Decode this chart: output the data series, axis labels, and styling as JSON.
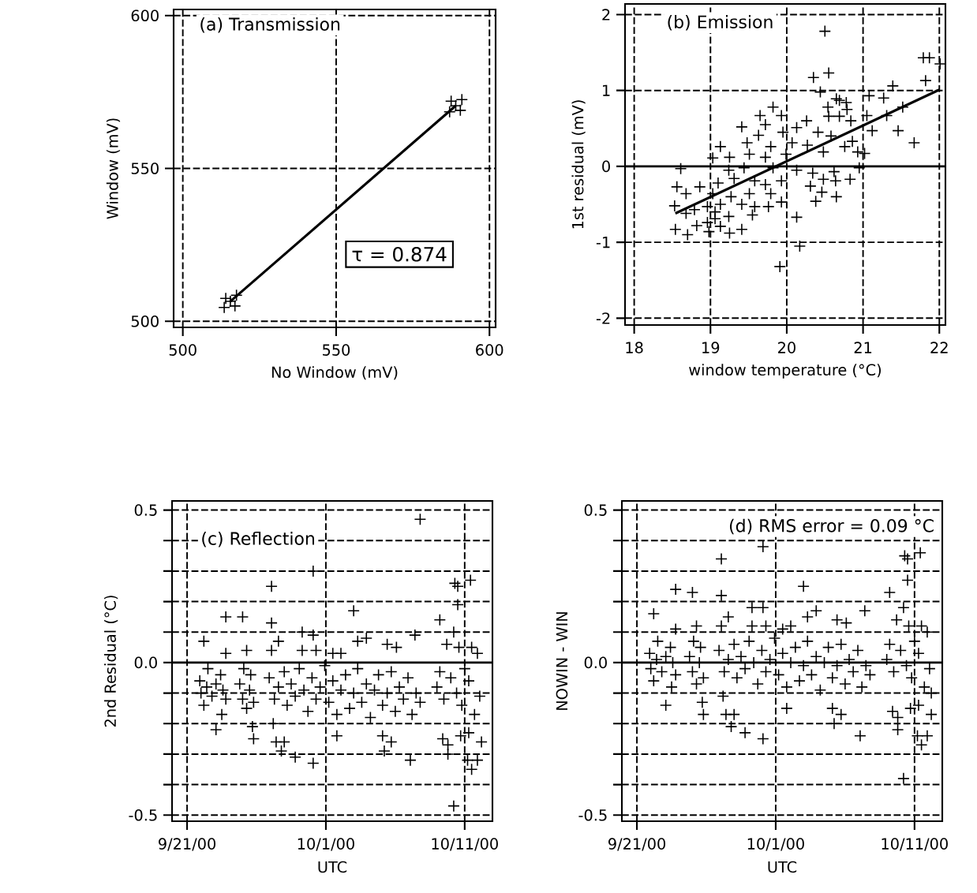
{
  "chart_data": [
    {
      "type": "scatter",
      "title": "(a) Transmission",
      "xlabel": "No Window (mV)",
      "ylabel": "Window (mV)",
      "annotations": [
        "τ = 0.874"
      ],
      "xlim": [
        497,
        602
      ],
      "ylim": [
        498,
        602
      ],
      "xticks": [
        500,
        550,
        600
      ],
      "yticks": [
        500,
        550,
        600
      ],
      "grid": true,
      "series": [
        {
          "color": "#000000",
          "marker": "cross",
          "x": [
            513.5,
            515.5,
            517.5,
            514,
            517,
            587,
            589,
            591,
            587.5,
            590.5
          ],
          "values": [
            504.5,
            506.5,
            508.5,
            507.5,
            505,
            568.5,
            570.5,
            572.5,
            572,
            569
          ]
        },
        {
          "type": "line",
          "marker": "none",
          "color": "#000000",
          "x": [
            515.4,
            589
          ],
          "values": [
            506.4,
            570.5
          ]
        }
      ]
    },
    {
      "type": "scatter",
      "title": "(b) Emission",
      "xlabel": "window temperature (°C)",
      "ylabel": "1st residual (mV)",
      "xlim": [
        17.88,
        22.08
      ],
      "ylim": [
        -2.09,
        2.14
      ],
      "xticks": [
        18,
        19,
        20,
        21,
        22
      ],
      "yticks": [
        -2,
        -1,
        0,
        1,
        2
      ],
      "grid": true,
      "ref_lines": [
        {
          "axis": "y",
          "value": 0
        }
      ],
      "series": [
        {
          "color": "#000000",
          "marker": "cross",
          "x": [
            20.5,
            21.79,
            21.87,
            22.01,
            20.55,
            20.35,
            21.82,
            21.39,
            20.44,
            21.08,
            21.27,
            20.65,
            20.69,
            20.78,
            20.54,
            19.82,
            21.52,
            20.79,
            19.65,
            19.93,
            21.05,
            21.31,
            20.55,
            20.69,
            20.26,
            20.84,
            19.72,
            19.41,
            20.13,
            21.46,
            21.12,
            21.67,
            19.63,
            19.95,
            20.41,
            19.48,
            20.07,
            20.58,
            20.86,
            19.13,
            19.79,
            20.27,
            20.76,
            19.03,
            19.25,
            19.51,
            19.72,
            19.99,
            20.48,
            20.93,
            21.02,
            20.95,
            18.61,
            19.24,
            19.44,
            19.82,
            20.13,
            20.34,
            20.62,
            20.64,
            20.83,
            20.48,
            18.56,
            18.86,
            19.1,
            19.31,
            19.58,
            19.72,
            19.93,
            20.31,
            18.68,
            19.03,
            19.27,
            19.51,
            19.79,
            20.46,
            20.65,
            20.38,
            18.53,
            18.79,
            18.96,
            19.13,
            19.41,
            19.58,
            19.76,
            19.93,
            18.68,
            19.06,
            19.24,
            19.55,
            20.13,
            18.54,
            18.7,
            18.82,
            18.98,
            19.13,
            19.25,
            19.41,
            18.96,
            19.06,
            20.17,
            19.91
          ],
          "values": [
            1.78,
            1.43,
            1.43,
            1.35,
            1.23,
            1.17,
            1.13,
            1.06,
            0.98,
            0.93,
            0.9,
            0.89,
            0.87,
            0.84,
            0.78,
            0.78,
            0.78,
            0.75,
            0.67,
            0.67,
            0.67,
            0.67,
            0.66,
            0.66,
            0.6,
            0.6,
            0.55,
            0.52,
            0.51,
            0.47,
            0.47,
            0.31,
            0.41,
            0.45,
            0.45,
            0.31,
            0.31,
            0.4,
            0.33,
            0.26,
            0.26,
            0.28,
            0.26,
            0.11,
            0.12,
            0.16,
            0.12,
            0.16,
            0.19,
            0.19,
            0.17,
            -0.02,
            -0.03,
            -0.05,
            -0.02,
            -0.02,
            -0.05,
            -0.09,
            -0.07,
            -0.19,
            -0.17,
            -0.17,
            -0.27,
            -0.27,
            -0.22,
            -0.16,
            -0.19,
            -0.24,
            -0.19,
            -0.26,
            -0.36,
            -0.36,
            -0.4,
            -0.36,
            -0.36,
            -0.34,
            -0.4,
            -0.46,
            -0.52,
            -0.57,
            -0.53,
            -0.5,
            -0.5,
            -0.53,
            -0.53,
            -0.47,
            -0.62,
            -0.6,
            -0.66,
            -0.64,
            -0.67,
            -0.83,
            -0.9,
            -0.78,
            -0.86,
            -0.79,
            -0.88,
            -0.83,
            -0.74,
            -0.69,
            -1.05,
            -1.32
          ]
        },
        {
          "type": "line",
          "marker": "none",
          "color": "#000000",
          "x": [
            18.54,
            22.0
          ],
          "values": [
            -0.62,
            1.01
          ]
        }
      ]
    },
    {
      "type": "scatter",
      "title": "(c) Reflection",
      "xlabel": "UTC",
      "ylabel": "2nd Residual (°C)",
      "xlim": [
        "2000-09-19T22:00",
        "2000-10-13T00:00"
      ],
      "ylim": [
        -0.52,
        0.53
      ],
      "xticks": [
        {
          "value": "2000-09-21",
          "label": "9/21/00"
        },
        {
          "value": "2000-10-01",
          "label": "10/1/00"
        },
        {
          "value": "2000-10-11",
          "label": "10/11/00"
        }
      ],
      "yticks": [
        -0.5,
        {
          "value": -0.4,
          "label": null
        },
        {
          "value": -0.3,
          "label": null
        },
        {
          "value": -0.2,
          "label": null
        },
        {
          "value": -0.1,
          "label": null
        },
        {
          "value": 0.0,
          "label": "0.0"
        },
        {
          "value": 0.1,
          "label": null
        },
        {
          "value": 0.2,
          "label": null
        },
        {
          "value": 0.3,
          "label": null
        },
        {
          "value": 0.4,
          "label": null
        },
        0.5
      ],
      "grid": true,
      "marker": "cross",
      "ref_lines": [
        {
          "axis": "y",
          "value": 0
        }
      ],
      "series": [
        {
          "color": "#000000",
          "x": [
            "2000-09-21T22:00",
            "2000-09-22T00:00",
            "2000-09-22T05:00",
            "2000-09-22T05:00",
            "2000-09-22T10:00",
            "2000-09-22T12:00",
            "2000-09-22T19:00",
            "2000-09-23T02:00",
            "2000-09-23T02:00",
            "2000-09-23T10:00",
            "2000-09-23T12:00",
            "2000-09-23T14:00",
            "2000-09-23T19:00",
            "2000-09-23T19:00",
            "2000-09-23T19:00",
            "2000-09-24T19:00",
            "2000-09-25T00:00",
            "2000-09-25T00:00",
            "2000-09-25T02:00",
            "2000-09-25T07:00",
            "2000-09-25T07:00",
            "2000-09-25T12:00",
            "2000-09-25T14:00",
            "2000-09-25T17:00",
            "2000-09-25T19:00",
            "2000-09-25T19:00",
            "2000-09-26T22:00",
            "2000-09-27T02:00",
            "2000-09-27T02:00",
            "2000-09-27T02:00",
            "2000-09-27T05:00",
            "2000-09-27T07:00",
            "2000-09-27T10:00",
            "2000-09-27T14:00",
            "2000-09-27T14:00",
            "2000-09-27T19:00",
            "2000-09-28T00:00",
            "2000-09-28T00:00",
            "2000-09-28T05:00",
            "2000-09-28T12:00",
            "2000-09-28T19:00",
            "2000-09-28T19:00",
            "2000-09-29T02:00",
            "2000-09-29T07:00",
            "2000-09-29T07:00",
            "2000-09-29T10:00",
            "2000-09-29T17:00",
            "2000-09-30T00:00",
            "2000-09-30T02:00",
            "2000-09-30T02:00",
            "2000-09-30T02:00",
            "2000-09-30T07:00",
            "2000-09-30T07:00",
            "2000-09-30T14:00",
            "2000-09-30T22:00",
            "2000-10-01T05:00",
            "2000-10-01T12:00",
            "2000-10-01T12:00",
            "2000-10-01T19:00",
            "2000-10-01T19:00",
            "2000-10-02T02:00",
            "2000-10-02T02:00",
            "2000-10-02T10:00",
            "2000-10-02T17:00",
            "2000-10-03T00:00",
            "2000-10-03T00:00",
            "2000-10-03T07:00",
            "2000-10-03T07:00",
            "2000-10-03T14:00",
            "2000-10-03T22:00",
            "2000-10-03T22:00",
            "2000-10-04T05:00",
            "2000-10-04T12:00",
            "2000-10-04T19:00",
            "2000-10-05T02:00",
            "2000-10-05T02:00",
            "2000-10-05T05:00",
            "2000-10-05T10:00",
            "2000-10-05T10:00",
            "2000-10-05T17:00",
            "2000-10-05T17:00",
            "2000-10-06T00:00",
            "2000-10-06T02:00",
            "2000-10-06T07:00",
            "2000-10-06T14:00",
            "2000-10-06T22:00",
            "2000-10-07T02:00",
            "2000-10-07T05:00",
            "2000-10-07T10:00",
            "2000-10-07T12:00",
            "2000-10-07T19:00",
            "2000-10-07T19:00",
            "2000-10-09T00:00",
            "2000-10-09T05:00",
            "2000-10-09T05:00",
            "2000-10-09T10:00",
            "2000-10-09T12:00",
            "2000-10-09T17:00",
            "2000-10-09T19:00",
            "2000-10-09T19:00",
            "2000-10-10T00:00",
            "2000-10-10T05:00",
            "2000-10-10T05:00",
            "2000-10-10T07:00",
            "2000-10-10T10:00",
            "2000-10-10T12:00",
            "2000-10-10T12:00",
            "2000-10-10T14:00",
            "2000-10-10T17:00",
            "2000-10-10T19:00",
            "2000-10-11T00:00",
            "2000-10-11T05:00",
            "2000-10-11T07:00",
            "2000-10-11T07:00",
            "2000-10-11T10:00",
            "2000-10-11T12:00",
            "2000-10-11T12:00",
            "2000-10-11T17:00",
            "2000-10-11T22:00",
            "2000-10-11T22:00",
            "2000-10-12T02:00",
            "2000-10-12T05:00"
          ],
          "values": [
            -0.06,
            -0.1,
            0.07,
            -0.14,
            -0.08,
            -0.02,
            -0.11,
            -0.22,
            -0.07,
            -0.04,
            -0.17,
            -0.09,
            0.15,
            0.03,
            -0.12,
            -0.07,
            0.15,
            -0.12,
            -0.02,
            0.04,
            -0.15,
            -0.09,
            -0.04,
            -0.21,
            -0.25,
            -0.13,
            -0.05,
            0.25,
            0.13,
            0.04,
            -0.2,
            -0.12,
            -0.26,
            0.07,
            -0.08,
            -0.29,
            -0.26,
            -0.03,
            -0.14,
            -0.07,
            -0.31,
            -0.11,
            -0.02,
            0.1,
            0.04,
            -0.09,
            -0.16,
            -0.05,
            0.3,
            0.09,
            -0.33,
            0.04,
            -0.12,
            -0.08,
            -0.01,
            -0.13,
            0.03,
            -0.06,
            -0.24,
            -0.17,
            0.03,
            -0.09,
            -0.04,
            -0.15,
            0.17,
            -0.1,
            0.07,
            -0.02,
            -0.13,
            0.08,
            -0.07,
            -0.18,
            -0.09,
            -0.04,
            -0.24,
            -0.14,
            -0.29,
            0.06,
            -0.1,
            -0.26,
            -0.03,
            -0.16,
            0.05,
            -0.08,
            -0.12,
            -0.05,
            -0.32,
            -0.17,
            0.09,
            -0.1,
            0.47,
            -0.13,
            -0.08,
            0.14,
            -0.03,
            -0.25,
            -0.12,
            0.06,
            -0.27,
            -0.3,
            -0.05,
            -0.47,
            0.1,
            0.26,
            -0.1,
            0.25,
            0.19,
            0.05,
            -0.24,
            -0.14,
            -0.02,
            -0.32,
            -0.23,
            -0.06,
            0.27,
            -0.35,
            0.05,
            -0.17,
            -0.32,
            0.03,
            -0.11,
            -0.26
          ]
        }
      ]
    },
    {
      "type": "scatter",
      "title": "(d) RMS error = 0.09 °C",
      "xlabel": "UTC",
      "ylabel": "NOWIN - WIN",
      "xlim": [
        "2000-09-19T22:00",
        "2000-10-13T00:00"
      ],
      "ylim": [
        -0.52,
        0.53
      ],
      "xticks": [
        {
          "value": "2000-09-21",
          "label": "9/21/00"
        },
        {
          "value": "2000-10-01",
          "label": "10/1/00"
        },
        {
          "value": "2000-10-11",
          "label": "10/11/00"
        }
      ],
      "yticks": [
        -0.5,
        {
          "value": -0.4,
          "label": null
        },
        {
          "value": -0.3,
          "label": null
        },
        {
          "value": -0.2,
          "label": null
        },
        {
          "value": -0.1,
          "label": null
        },
        {
          "value": 0.0,
          "label": "0.0"
        },
        {
          "value": 0.1,
          "label": null
        },
        {
          "value": 0.2,
          "label": null
        },
        {
          "value": 0.3,
          "label": null
        },
        {
          "value": 0.4,
          "label": null
        },
        0.5
      ],
      "grid": true,
      "marker": "cross",
      "ref_lines": [
        {
          "axis": "y",
          "value": 0
        }
      ],
      "series": [
        {
          "color": "#000000",
          "x": [
            "2000-09-21T22:00",
            "2000-09-22T00:00",
            "2000-09-22T05:00",
            "2000-09-22T05:00",
            "2000-09-22T10:00",
            "2000-09-22T12:00",
            "2000-09-22T19:00",
            "2000-09-23T02:00",
            "2000-09-23T02:00",
            "2000-09-23T10:00",
            "2000-09-23T12:00",
            "2000-09-23T14:00",
            "2000-09-23T19:00",
            "2000-09-23T19:00",
            "2000-09-23T19:00",
            "2000-09-24T19:00",
            "2000-09-25T00:00",
            "2000-09-25T00:00",
            "2000-09-25T02:00",
            "2000-09-25T07:00",
            "2000-09-25T07:00",
            "2000-09-25T12:00",
            "2000-09-25T14:00",
            "2000-09-25T17:00",
            "2000-09-25T19:00",
            "2000-09-25T19:00",
            "2000-09-26T22:00",
            "2000-09-27T02:00",
            "2000-09-27T02:00",
            "2000-09-27T02:00",
            "2000-09-27T05:00",
            "2000-09-27T07:00",
            "2000-09-27T10:00",
            "2000-09-27T14:00",
            "2000-09-27T14:00",
            "2000-09-27T19:00",
            "2000-09-28T00:00",
            "2000-09-28T00:00",
            "2000-09-28T05:00",
            "2000-09-28T12:00",
            "2000-09-28T19:00",
            "2000-09-28T19:00",
            "2000-09-29T02:00",
            "2000-09-29T07:00",
            "2000-09-29T07:00",
            "2000-09-29T10:00",
            "2000-09-29T17:00",
            "2000-09-30T00:00",
            "2000-09-30T02:00",
            "2000-09-30T02:00",
            "2000-09-30T02:00",
            "2000-09-30T07:00",
            "2000-09-30T07:00",
            "2000-09-30T14:00",
            "2000-09-30T22:00",
            "2000-10-01T05:00",
            "2000-10-01T12:00",
            "2000-10-01T12:00",
            "2000-10-01T19:00",
            "2000-10-01T19:00",
            "2000-10-02T02:00",
            "2000-10-02T02:00",
            "2000-10-02T10:00",
            "2000-10-02T17:00",
            "2000-10-03T00:00",
            "2000-10-03T00:00",
            "2000-10-03T07:00",
            "2000-10-03T07:00",
            "2000-10-03T14:00",
            "2000-10-03T22:00",
            "2000-10-03T22:00",
            "2000-10-04T05:00",
            "2000-10-04T12:00",
            "2000-10-04T19:00",
            "2000-10-05T02:00",
            "2000-10-05T02:00",
            "2000-10-05T05:00",
            "2000-10-05T10:00",
            "2000-10-05T10:00",
            "2000-10-05T17:00",
            "2000-10-05T17:00",
            "2000-10-06T00:00",
            "2000-10-06T02:00",
            "2000-10-06T07:00",
            "2000-10-06T14:00",
            "2000-10-06T22:00",
            "2000-10-07T02:00",
            "2000-10-07T05:00",
            "2000-10-07T10:00",
            "2000-10-07T12:00",
            "2000-10-07T19:00",
            "2000-10-09T00:00",
            "2000-10-09T05:00",
            "2000-10-09T05:00",
            "2000-10-09T10:00",
            "2000-10-09T12:00",
            "2000-10-09T17:00",
            "2000-10-09T19:00",
            "2000-10-09T19:00",
            "2000-10-10T00:00",
            "2000-10-10T05:00",
            "2000-10-10T05:00",
            "2000-10-10T07:00",
            "2000-10-10T10:00",
            "2000-10-10T12:00",
            "2000-10-10T12:00",
            "2000-10-10T14:00",
            "2000-10-10T17:00",
            "2000-10-10T19:00",
            "2000-10-11T00:00",
            "2000-10-11T05:00",
            "2000-10-11T07:00",
            "2000-10-11T07:00",
            "2000-10-11T10:00",
            "2000-10-11T12:00",
            "2000-10-11T12:00",
            "2000-10-11T17:00",
            "2000-10-11T22:00",
            "2000-10-11T22:00",
            "2000-10-12T02:00",
            "2000-10-12T05:00",
            "2000-10-12T05:00"
          ],
          "values": [
            0.03,
            -0.02,
            0.16,
            -0.06,
            0.01,
            0.07,
            -0.03,
            -0.14,
            0.02,
            0.05,
            -0.08,
            0.0,
            0.24,
            0.11,
            -0.04,
            0.02,
            0.23,
            -0.03,
            0.07,
            0.12,
            -0.07,
            0.0,
            0.05,
            -0.13,
            -0.17,
            -0.05,
            0.04,
            0.34,
            0.22,
            0.12,
            -0.11,
            -0.03,
            -0.17,
            0.15,
            0.01,
            -0.21,
            -0.17,
            0.06,
            -0.05,
            0.02,
            -0.23,
            -0.02,
            0.07,
            0.18,
            0.12,
            0.0,
            -0.07,
            0.04,
            0.38,
            0.18,
            -0.25,
            0.12,
            -0.03,
            0.01,
            0.08,
            -0.04,
            0.11,
            0.03,
            -0.15,
            -0.08,
            0.12,
            0.0,
            0.05,
            -0.06,
            0.25,
            -0.01,
            0.15,
            0.07,
            -0.04,
            0.17,
            0.02,
            -0.09,
            0.0,
            0.05,
            -0.15,
            -0.05,
            -0.2,
            0.14,
            -0.01,
            -0.17,
            0.06,
            -0.07,
            0.13,
            0.01,
            -0.03,
            0.04,
            -0.24,
            -0.08,
            0.17,
            -0.01,
            -0.04,
            0.01,
            0.23,
            0.06,
            -0.16,
            -0.03,
            0.14,
            -0.18,
            -0.22,
            0.04,
            -0.38,
            0.18,
            0.35,
            -0.01,
            0.34,
            0.27,
            0.12,
            -0.15,
            -0.05,
            0.07,
            -0.24,
            -0.14,
            0.03,
            0.36,
            -0.27,
            0.12,
            -0.08,
            -0.24,
            0.1,
            -0.02,
            -0.17,
            -0.1
          ]
        }
      ]
    }
  ]
}
